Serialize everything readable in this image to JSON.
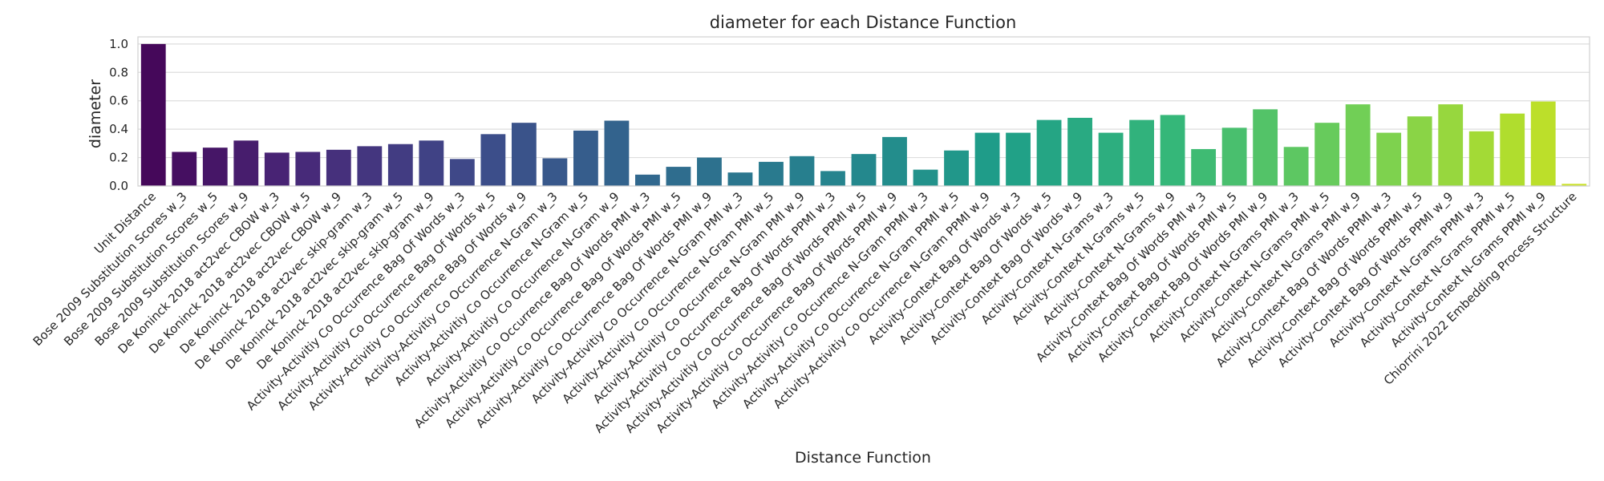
{
  "chart_data": {
    "type": "bar",
    "title": "diameter for each Distance Function",
    "xlabel": "Distance Function",
    "ylabel": "diameter",
    "ylim": [
      0,
      1.05
    ],
    "yticks": [
      "0.0",
      "0.2",
      "0.4",
      "0.6",
      "0.8",
      "1.0"
    ],
    "grid": true,
    "palette": "viridis",
    "categories": [
      "Unit Distance",
      "Bose 2009 Substitution Scores w_3",
      "Bose 2009 Substitution Scores w_5",
      "Bose 2009 Substitution Scores w_9",
      "De Koninck 2018 act2vec CBOW w_3",
      "De Koninck 2018 act2vec CBOW w_5",
      "De Koninck 2018 act2vec CBOW w_9",
      "De Koninck 2018 act2vec skip-gram w_3",
      "De Koninck 2018 act2vec skip-gram w_5",
      "De Koninck 2018 act2vec skip-gram w_9",
      "Activity-Activitiy Co Occurrence Bag Of Words w_3",
      "Activity-Activitiy Co Occurrence Bag Of Words w_5",
      "Activity-Activitiy Co Occurrence Bag Of Words w_9",
      "Activity-Activitiy Co Occurrence N-Gram w_3",
      "Activity-Activitiy Co Occurrence N-Gram w_5",
      "Activity-Activitiy Co Occurrence N-Gram w_9",
      "Activity-Activitiy Co Occurrence Bag Of Words PMI w_3",
      "Activity-Activitiy Co Occurrence Bag Of Words PMI w_5",
      "Activity-Activitiy Co Occurrence Bag Of Words PMI w_9",
      "Activity-Activitiy Co Occurrence N-Gram PMI w_3",
      "Activity-Activitiy Co Occurrence N-Gram PMI w_5",
      "Activity-Activitiy Co Occurrence N-Gram PMI w_9",
      "Activity-Activitiy Co Occurrence Bag Of Words PPMI w_3",
      "Activity-Activitiy Co Occurrence Bag Of Words PPMI w_5",
      "Activity-Activitiy Co Occurrence Bag Of Words PPMI w_9",
      "Activity-Activitiy Co Occurrence N-Gram PPMI w_3",
      "Activity-Activitiy Co Occurrence N-Gram PPMI w_5",
      "Activity-Activitiy Co Occurrence N-Gram PPMI w_9",
      "Activity-Context Bag Of Words w_3",
      "Activity-Context Bag Of Words w_5",
      "Activity-Context Bag Of Words w_9",
      "Activity-Context N-Grams w_3",
      "Activity-Context N-Grams w_5",
      "Activity-Context N-Grams w_9",
      "Activity-Context Bag Of Words PMI w_3",
      "Activity-Context Bag Of Words PMI w_5",
      "Activity-Context Bag Of Words PMI w_9",
      "Activity-Context N-Grams PMI w_3",
      "Activity-Context N-Grams PMI w_5",
      "Activity-Context N-Grams PMI w_9",
      "Activity-Context Bag Of Words PPMI w_3",
      "Activity-Context Bag Of Words PPMI w_5",
      "Activity-Context Bag Of Words PPMI w_9",
      "Activity-Context N-Grams PPMI w_3",
      "Activity-Context N-Grams PPMI w_5",
      "Activity-Context N-Grams PPMI w_9",
      "Chiorrini 2022 Embedding Process Structure"
    ],
    "values": [
      1.0,
      0.24,
      0.27,
      0.32,
      0.235,
      0.24,
      0.255,
      0.28,
      0.295,
      0.32,
      0.19,
      0.365,
      0.445,
      0.195,
      0.39,
      0.46,
      0.08,
      0.135,
      0.2,
      0.095,
      0.17,
      0.21,
      0.105,
      0.225,
      0.345,
      0.115,
      0.25,
      0.375,
      0.375,
      0.465,
      0.48,
      0.375,
      0.465,
      0.5,
      0.26,
      0.41,
      0.54,
      0.275,
      0.445,
      0.575,
      0.375,
      0.49,
      0.575,
      0.385,
      0.51,
      0.595,
      0.015
    ]
  }
}
